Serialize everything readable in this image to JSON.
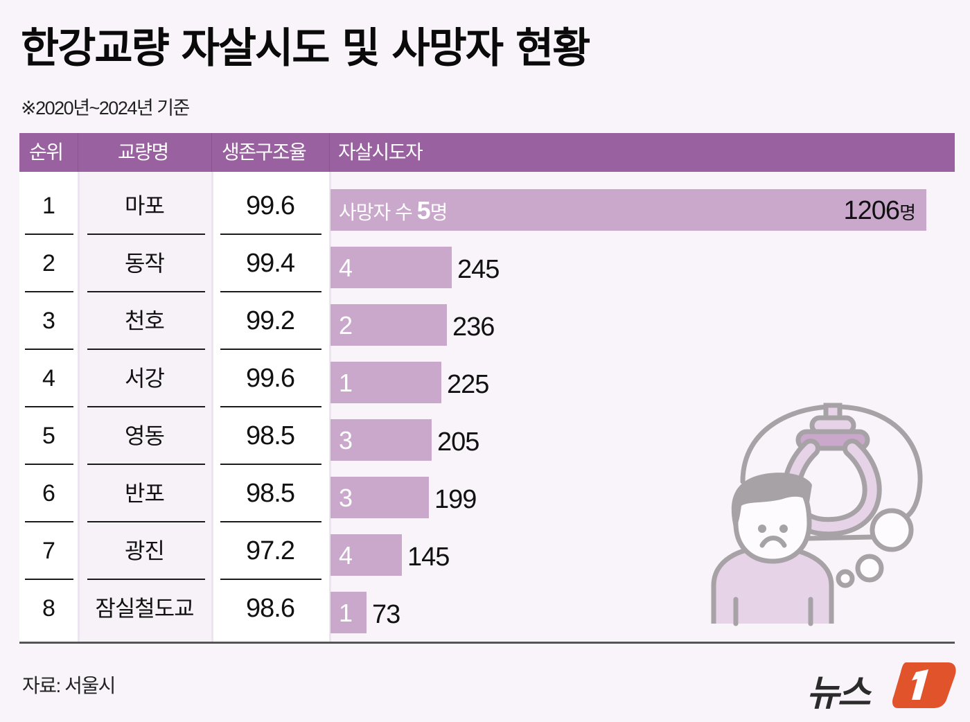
{
  "title": "한강교량 자살시도 및 사망자 현황",
  "subtitle": "※2020년~2024년 기준",
  "table": {
    "headers": [
      "순위",
      "교량명",
      "생존구조율",
      "자살시도자"
    ],
    "rows": [
      {
        "rank": "1",
        "name": "마포",
        "rate": "99.6",
        "deaths": "5",
        "attempts": "1206",
        "death_label_prefix": "사망자 수 ",
        "death_label_suffix": "명",
        "attempts_unit": "명"
      },
      {
        "rank": "2",
        "name": "동작",
        "rate": "99.4",
        "deaths": "4",
        "attempts": "245"
      },
      {
        "rank": "3",
        "name": "천호",
        "rate": "99.2",
        "deaths": "2",
        "attempts": "236"
      },
      {
        "rank": "4",
        "name": "서강",
        "rate": "99.6",
        "deaths": "1",
        "attempts": "225"
      },
      {
        "rank": "5",
        "name": "영동",
        "rate": "98.5",
        "deaths": "3",
        "attempts": "205"
      },
      {
        "rank": "6",
        "name": "반포",
        "rate": "98.5",
        "deaths": "3",
        "attempts": "199"
      },
      {
        "rank": "7",
        "name": "광진",
        "rate": "97.2",
        "deaths": "4",
        "attempts": "145"
      },
      {
        "rank": "8",
        "name": "잠실철도교",
        "rate": "98.6",
        "deaths": "1",
        "attempts": "73"
      }
    ]
  },
  "source": "자료: 서울시",
  "logo": {
    "text": "뉴스",
    "mark": "1"
  },
  "illustration": "person-thinking-noose-icon",
  "colors": {
    "background": "#f9f4fa",
    "header": "#99619f",
    "bar": "#c9a8cc",
    "logo_accent": "#e0532b"
  },
  "chart_data": {
    "type": "table",
    "title": "한강교량 자살시도 및 사망자 현황",
    "subtitle": "※2020년~2024년 기준",
    "columns": [
      "순위",
      "교량명",
      "생존구조율",
      "자살시도자",
      "사망자 수"
    ],
    "categories": [
      "마포",
      "동작",
      "천호",
      "서강",
      "영동",
      "반포",
      "광진",
      "잠실철도교"
    ],
    "series": [
      {
        "name": "자살시도자",
        "values": [
          1206,
          245,
          236,
          225,
          205,
          199,
          145,
          73
        ]
      },
      {
        "name": "사망자 수",
        "values": [
          5,
          4,
          2,
          1,
          3,
          3,
          4,
          1
        ]
      },
      {
        "name": "생존구조율",
        "values": [
          99.6,
          99.4,
          99.2,
          99.6,
          98.5,
          98.5,
          97.2,
          98.6
        ]
      }
    ],
    "bar_series": "자살시도자",
    "source": "자료: 서울시"
  }
}
